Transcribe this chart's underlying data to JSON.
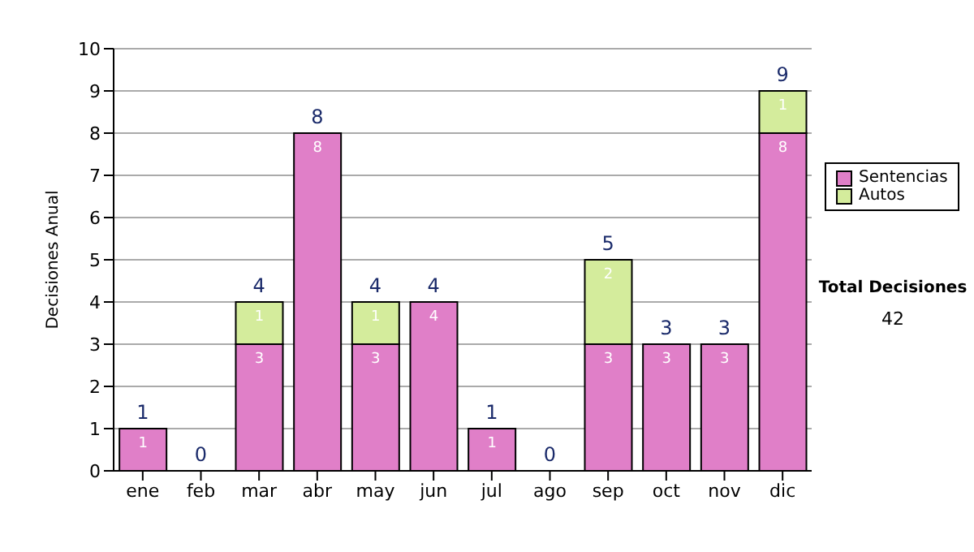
{
  "chart_data": {
    "type": "bar",
    "ylabel": "Decisiones Anual",
    "categories": [
      "ene",
      "feb",
      "mar",
      "abr",
      "may",
      "jun",
      "jul",
      "ago",
      "sep",
      "oct",
      "nov",
      "dic"
    ],
    "series": [
      {
        "name": "Sentencias",
        "color": "#e07fc8",
        "values": [
          1,
          0,
          3,
          8,
          3,
          4,
          1,
          0,
          3,
          3,
          3,
          8
        ],
        "value_labels": [
          "1",
          null,
          "3",
          "8",
          "3",
          "4",
          "1",
          null,
          "3",
          "3",
          "3",
          "8"
        ]
      },
      {
        "name": "Autos",
        "color": "#d4ec9c",
        "values": [
          0,
          0,
          1,
          0,
          1,
          0,
          0,
          0,
          2,
          0,
          0,
          1
        ],
        "value_labels": [
          null,
          null,
          "1",
          null,
          "1",
          null,
          null,
          null,
          "2",
          null,
          null,
          "1"
        ]
      }
    ],
    "stacked": true,
    "totals": [
      "1",
      "0",
      "4",
      "8",
      "4",
      "4",
      "1",
      "0",
      "5",
      "3",
      "3",
      "9"
    ],
    "ylim": [
      0,
      10
    ],
    "yticks": [
      0,
      1,
      2,
      3,
      4,
      5,
      6,
      7,
      8,
      9,
      10
    ],
    "grid": "y",
    "legend": "right",
    "annotations": [
      "Total Decisiones",
      "42"
    ]
  }
}
